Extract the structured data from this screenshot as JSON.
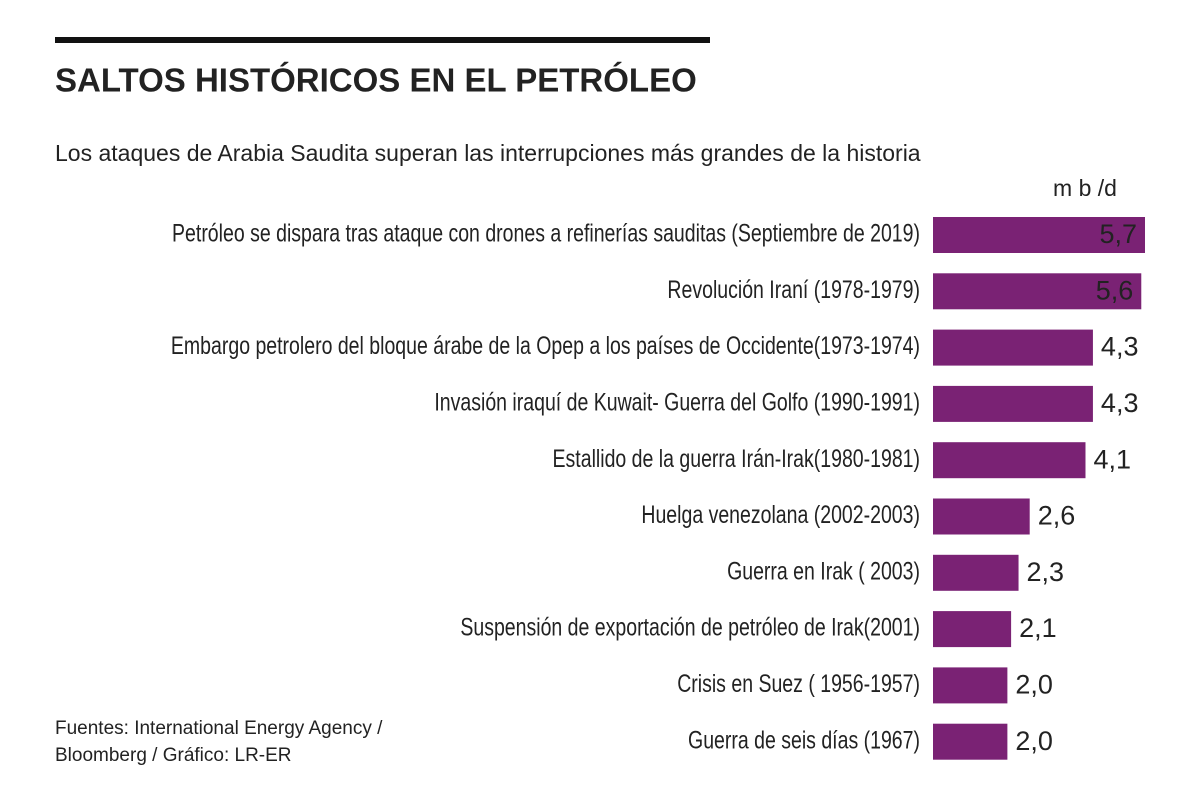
{
  "chart_data": {
    "type": "hbar",
    "title": "SALTOS HISTÓRICOS EN EL PETRÓLEO",
    "subtitle": "Los ataques de Arabia Saudita superan las interrupciones más grandes de la historia",
    "unit": "m b /d",
    "categories": [
      "Petróleo se dispara tras ataque con drones a refinerías sauditas (Septiembre de 2019)",
      "Revolución Iraní (1978-1979)",
      "Embargo petrolero del bloque árabe de la Opep a los países de Occidente(1973-1974)",
      "Invasión iraquí de Kuwait- Guerra del Golfo (1990-1991)",
      "Estallido de la guerra Irán-Irak(1980-1981)",
      "Huelga venezolana (2002-2003)",
      "Guerra en Irak ( 2003)",
      "Suspensión de exportación de petróleo de Irak(2001)",
      "Crisis en Suez ( 1956-1957)",
      "Guerra de seis días (1967)"
    ],
    "values": [
      5.7,
      5.6,
      4.3,
      4.3,
      4.1,
      2.6,
      2.3,
      2.1,
      2.0,
      2.0
    ],
    "value_labels": [
      "5,7",
      "5,6",
      "4,3",
      "4,3",
      "4,1",
      "2,6",
      "2,3",
      "2,1",
      "2,0",
      "2,0"
    ],
    "color": "#7a2274",
    "source": [
      "Fuentes: International Energy Agency /",
      "Bloomberg / Gráfico: LR-ER"
    ]
  }
}
